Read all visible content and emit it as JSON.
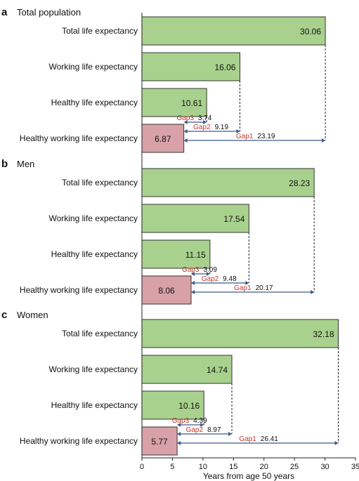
{
  "colors": {
    "life_bar": "#a9d18e",
    "hwle_bar": "#d8a1a8",
    "bar_stroke": "#333333",
    "gap_label": "#c0392b",
    "gap_arrow": "#3c5a8a"
  },
  "chart_data": [
    {
      "type": "bar",
      "orientation": "horizontal",
      "panel_letter": "a",
      "title": "Total population",
      "categories": [
        "Total life expectancy",
        "Working life expectancy",
        "Healthy life expectancy",
        "Healthy working life expectancy"
      ],
      "values": [
        30.06,
        16.06,
        10.61,
        6.87
      ],
      "value_labels": [
        "30.06",
        "16.06",
        "10.61",
        "6.87"
      ],
      "gaps": [
        {
          "name": "Gap3",
          "value": 3.74,
          "label": "3.74",
          "from": 6.87,
          "to": 10.61
        },
        {
          "name": "Gap2",
          "value": 9.19,
          "label": "9.19",
          "from": 6.87,
          "to": 16.06
        },
        {
          "name": "Gap1",
          "value": 23.19,
          "label": "23.19",
          "from": 6.87,
          "to": 30.06
        }
      ]
    },
    {
      "type": "bar",
      "orientation": "horizontal",
      "panel_letter": "b",
      "title": "Men",
      "categories": [
        "Total life expectancy",
        "Working life expectancy",
        "Healthy life expectancy",
        "Healthy working life expectancy"
      ],
      "values": [
        28.23,
        17.54,
        11.15,
        8.06
      ],
      "value_labels": [
        "28.23",
        "17.54",
        "11.15",
        "8.06"
      ],
      "gaps": [
        {
          "name": "Gap3",
          "value": 3.09,
          "label": "3.09",
          "from": 8.06,
          "to": 11.15
        },
        {
          "name": "Gap2",
          "value": 9.48,
          "label": "9.48",
          "from": 8.06,
          "to": 17.54
        },
        {
          "name": "Gap1",
          "value": 20.17,
          "label": "20.17",
          "from": 8.06,
          "to": 28.23
        }
      ]
    },
    {
      "type": "bar",
      "orientation": "horizontal",
      "panel_letter": "c",
      "title": "Women",
      "categories": [
        "Total life expectancy",
        "Working life expectancy",
        "Healthy life expectancy",
        "Healthy working life expectancy"
      ],
      "values": [
        32.18,
        14.74,
        10.16,
        5.77
      ],
      "value_labels": [
        "32.18",
        "14.74",
        "10.16",
        "5.77"
      ],
      "gaps": [
        {
          "name": "Gap3",
          "value": 4.39,
          "label": "4.39",
          "from": 5.77,
          "to": 10.16
        },
        {
          "name": "Gap2",
          "value": 8.97,
          "label": "8.97",
          "from": 5.77,
          "to": 14.74
        },
        {
          "name": "Gap1",
          "value": 26.41,
          "label": "26.41",
          "from": 5.77,
          "to": 32.18
        }
      ]
    }
  ],
  "x_axis": {
    "title": "Years from age 50 years",
    "ticks": [
      0,
      5,
      10,
      15,
      20,
      25,
      30,
      35
    ],
    "tick_labels": [
      "0",
      "5",
      "10",
      "15",
      "20",
      "25",
      "30",
      "35"
    ],
    "range": [
      0,
      35
    ]
  }
}
